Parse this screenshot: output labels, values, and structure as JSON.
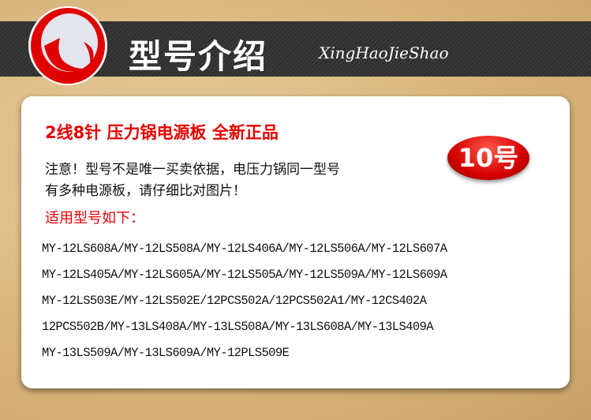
{
  "header": {
    "title": "型号介绍",
    "subtitle": "XingHaoJieShao"
  },
  "card": {
    "title": "2线8针 压力锅电源板 全新正品",
    "badge": "10号",
    "notice_lines": [
      "注意！型号不是唯一买卖依据，电压力锅同一型号",
      "有多种电源板，请仔细比对图片！"
    ],
    "applicable_label": "适用型号如下：",
    "model_lines": [
      "MY-12LS608A/MY-12LS508A/MY-12LS406A/MY-12LS506A/MY-12LS607A",
      "MY-12LS405A/MY-12LS605A/MY-12LS505A/MY-12LS509A/MY-12LS609A",
      "MY-12LS503E/MY-12LS502E/12PCS502A/12PCS502A1/MY-12CS402A",
      "12PCS502B/MY-13LS408A/MY-13LS508A/MY-13LS608A/MY-13LS409A",
      "MY-13LS509A/MY-13LS609A/MY-12PLS509E"
    ]
  },
  "colors": {
    "accent": "#e60000",
    "band": "#333333"
  }
}
